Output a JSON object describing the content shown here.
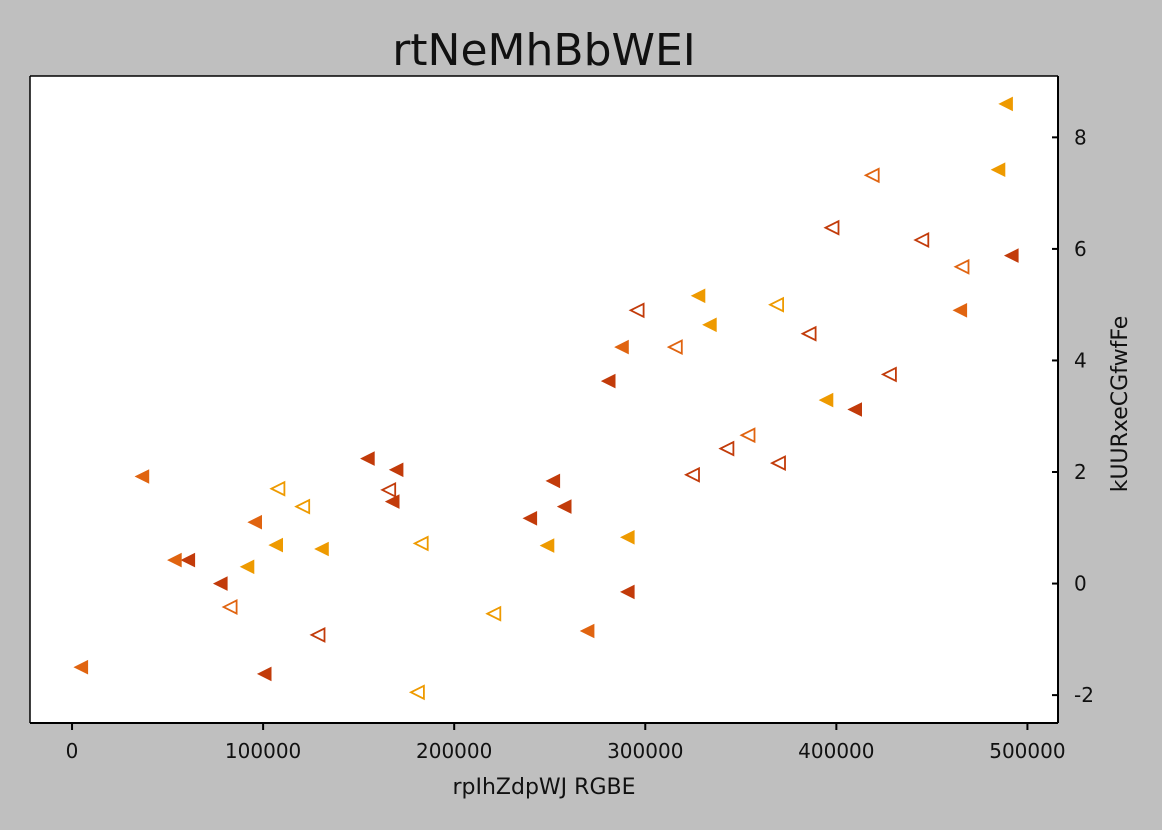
{
  "chart_data": {
    "type": "scatter",
    "title": "rtNeMhBbWEI",
    "xlabel": "rpIhZdpWJ RGBE",
    "ylabel": "kUURxeCGfwfFe",
    "xlim": [
      -22000,
      516000
    ],
    "ylim": [
      -2.5,
      9.1
    ],
    "xticks": [
      0,
      100000,
      200000,
      300000,
      400000,
      500000
    ],
    "yticks": [
      -2,
      0,
      2,
      4,
      6,
      8
    ],
    "grid": false,
    "legend": "none",
    "series": [
      {
        "color": "#c23b0a",
        "filled": true,
        "points": [
          [
            61000,
            0.42
          ],
          [
            78000,
            0.0
          ],
          [
            101000,
            -1.62
          ],
          [
            155000,
            2.24
          ],
          [
            168000,
            1.47
          ],
          [
            170000,
            2.04
          ],
          [
            240000,
            1.17
          ],
          [
            252000,
            1.84
          ],
          [
            258000,
            1.38
          ],
          [
            281000,
            3.63
          ],
          [
            291000,
            -0.15
          ],
          [
            410000,
            3.12
          ],
          [
            492000,
            5.88
          ]
        ]
      },
      {
        "color": "#e06410",
        "filled": true,
        "points": [
          [
            5000,
            -1.5
          ],
          [
            37000,
            1.92
          ],
          [
            54000,
            0.42
          ],
          [
            96000,
            1.1
          ],
          [
            270000,
            -0.85
          ],
          [
            288000,
            4.24
          ],
          [
            465000,
            4.9
          ]
        ]
      },
      {
        "color": "#ee9a00",
        "filled": true,
        "points": [
          [
            92000,
            0.3
          ],
          [
            107000,
            0.69
          ],
          [
            131000,
            0.62
          ],
          [
            249000,
            0.68
          ],
          [
            291000,
            0.83
          ],
          [
            328000,
            5.16
          ],
          [
            334000,
            4.64
          ],
          [
            395000,
            3.29
          ],
          [
            485000,
            7.42
          ],
          [
            489000,
            8.6
          ]
        ]
      },
      {
        "color": "#c23b0a",
        "filled": false,
        "points": [
          [
            129000,
            -0.92
          ],
          [
            166000,
            1.68
          ],
          [
            296000,
            4.9
          ],
          [
            325000,
            1.95
          ],
          [
            343000,
            2.42
          ],
          [
            370000,
            2.16
          ],
          [
            386000,
            4.48
          ],
          [
            398000,
            6.38
          ],
          [
            428000,
            3.75
          ],
          [
            445000,
            6.16
          ]
        ]
      },
      {
        "color": "#e06410",
        "filled": false,
        "points": [
          [
            83000,
            -0.42
          ],
          [
            316000,
            4.24
          ],
          [
            354000,
            2.66
          ],
          [
            419000,
            7.32
          ],
          [
            466000,
            5.68
          ]
        ]
      },
      {
        "color": "#ee9a00",
        "filled": false,
        "points": [
          [
            108000,
            1.7
          ],
          [
            121000,
            1.38
          ],
          [
            181000,
            -1.95
          ],
          [
            183000,
            0.72
          ],
          [
            221000,
            -0.54
          ],
          [
            369000,
            5.0
          ]
        ]
      }
    ]
  }
}
